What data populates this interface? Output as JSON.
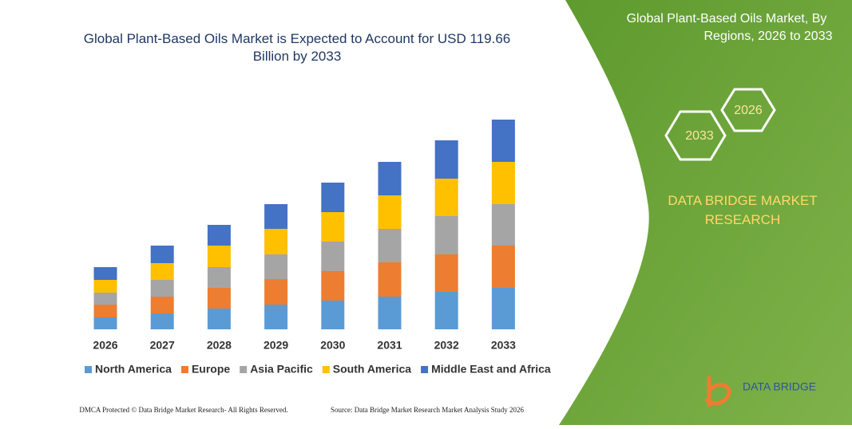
{
  "chart_data": {
    "type": "stacked-bar",
    "title": "Global Plant-Based Oils Market is Expected to Account for USD 119.66 Billion by 2033",
    "categories": [
      "2026",
      "2027",
      "2028",
      "2029",
      "2030",
      "2031",
      "2032",
      "2033"
    ],
    "series": [
      {
        "name": "North America",
        "color": "#5b9bd5",
        "values": [
          15,
          20,
          26,
          31,
          36,
          41,
          47,
          52
        ]
      },
      {
        "name": "Europe",
        "color": "#ed7d31",
        "values": [
          16,
          21,
          26,
          32,
          37,
          43,
          47,
          53
        ]
      },
      {
        "name": "Asia Pacific",
        "color": "#a5a5a5",
        "values": [
          15,
          21,
          26,
          31,
          37,
          42,
          48,
          52
        ]
      },
      {
        "name": "South America",
        "color": "#ffc000",
        "values": [
          16,
          21,
          27,
          32,
          37,
          42,
          47,
          53
        ]
      },
      {
        "name": "Middle East and Africa",
        "color": "#4472c4",
        "values": [
          16,
          22,
          26,
          31,
          37,
          42,
          48,
          53
        ]
      }
    ]
  },
  "panel": {
    "title": "Global Plant-Based Oils Market, By Regions, 2026 to 2033",
    "hex_end": "2033",
    "hex_start": "2026",
    "brand": "DATA BRIDGE MARKET RESEARCH"
  },
  "footer": {
    "left": "DMCA Protected © Data Bridge Market Research- All Rights Reserved.",
    "right": "Source: Data Bridge Market Research Market Analysis Study 2026",
    "logo": "DATA BRIDGE"
  }
}
